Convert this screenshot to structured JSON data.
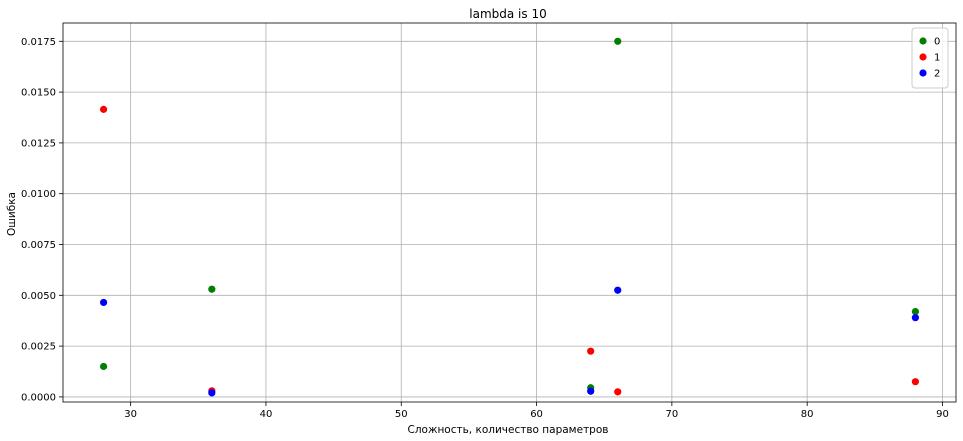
{
  "chart_data": {
    "type": "scatter",
    "title": "lambda is 10",
    "xlabel": "Сложность, количество параметров",
    "ylabel": "Ошибка",
    "xlim": [
      25,
      91
    ],
    "ylim": [
      -0.00025,
      0.0184
    ],
    "xticks": [
      30,
      40,
      50,
      60,
      70,
      80,
      90
    ],
    "xtick_labels": [
      "30",
      "40",
      "50",
      "60",
      "70",
      "80",
      "90"
    ],
    "yticks": [
      0.0,
      0.0025,
      0.005,
      0.0075,
      0.01,
      0.0125,
      0.015,
      0.0175
    ],
    "ytick_labels": [
      "0.0000",
      "0.0025",
      "0.0050",
      "0.0075",
      "0.0100",
      "0.0125",
      "0.0150",
      "0.0175"
    ],
    "grid": true,
    "legend_position": "top-right",
    "series": [
      {
        "name": "0",
        "color": "#008000",
        "x": [
          28,
          36,
          64,
          66,
          88
        ],
        "y": [
          0.0015,
          0.0053,
          0.00045,
          0.0175,
          0.0042
        ]
      },
      {
        "name": "1",
        "color": "#ff0000",
        "x": [
          28,
          36,
          64,
          66,
          88
        ],
        "y": [
          0.01415,
          0.0003,
          0.00225,
          0.00025,
          0.00075
        ]
      },
      {
        "name": "2",
        "color": "#0000ff",
        "x": [
          28,
          36,
          64,
          66,
          88
        ],
        "y": [
          0.00465,
          0.0002,
          0.00028,
          0.00525,
          0.0039
        ]
      }
    ]
  }
}
